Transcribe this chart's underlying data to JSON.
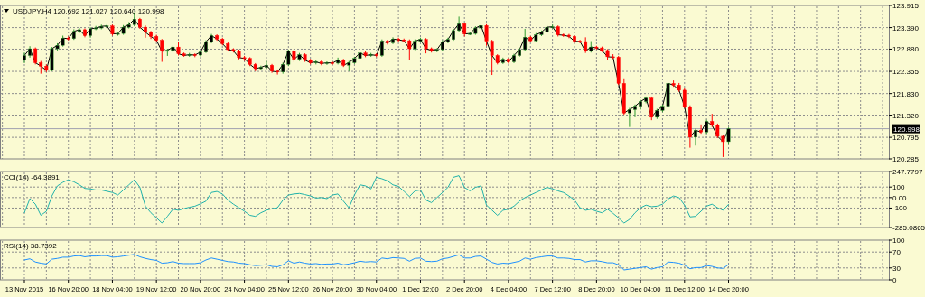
{
  "chart_data": [
    {
      "type": "candlestick",
      "title": "USDJPY,H4  120.692 121.027 120.640 120.998",
      "grid": true,
      "categories": [
        null,
        null,
        null,
        null,
        null,
        null,
        null,
        null,
        null,
        null,
        null,
        null,
        null,
        null,
        null,
        null,
        null,
        null,
        null,
        null,
        null,
        null,
        null,
        null,
        null,
        null,
        null,
        null,
        null,
        null,
        null,
        null,
        null,
        null,
        null,
        null,
        null,
        null,
        null,
        null,
        null,
        null,
        null,
        null,
        null,
        null,
        null,
        null,
        null,
        null,
        null,
        null,
        null,
        null,
        null,
        null,
        null,
        null,
        null,
        null,
        null,
        null,
        null,
        null,
        null,
        null,
        null,
        null,
        null,
        null,
        null,
        null,
        null,
        null,
        null,
        null,
        null,
        null,
        null,
        null,
        null,
        null,
        null,
        null,
        null,
        null,
        null,
        null,
        null,
        null,
        null,
        null,
        null,
        null,
        null,
        null,
        null,
        null,
        null,
        null,
        null,
        null,
        null,
        null,
        null,
        null,
        null,
        null,
        null,
        null,
        null,
        null,
        null,
        null,
        null,
        null,
        null,
        null,
        null,
        null,
        null,
        null,
        null,
        null,
        null,
        null,
        null,
        null,
        null
      ],
      "ylim": [
        120.285,
        123.915
      ],
      "yticks": [
        120.285,
        120.795,
        {
          "value": 121.32,
          "label": "121.320"
        },
        {
          "value": 121.83,
          "label": "121.830"
        },
        122.355,
        {
          "value": 122.88,
          "label": "122.880"
        },
        {
          "value": 123.39,
          "label": "123.390"
        },
        123.915
      ],
      "ref_lines": [
        {
          "axis": "y",
          "value": 120.998,
          "label": "120.998",
          "color": "#a0a0b0"
        }
      ],
      "ohlc": [
        [
          122.62,
          122.8,
          122.55,
          122.73
        ],
        [
          122.73,
          122.95,
          122.68,
          122.89
        ],
        [
          122.89,
          122.92,
          122.52,
          122.56
        ],
        [
          122.56,
          122.6,
          122.3,
          122.48
        ],
        [
          122.48,
          122.52,
          122.34,
          122.38
        ],
        [
          122.38,
          122.93,
          122.36,
          122.89
        ],
        [
          122.89,
          123.02,
          122.85,
          122.97
        ],
        [
          122.97,
          123.2,
          122.94,
          123.14
        ],
        [
          123.14,
          123.18,
          123.09,
          123.13
        ],
        [
          123.13,
          123.35,
          123.1,
          123.3
        ],
        [
          123.3,
          123.38,
          123.26,
          123.34
        ],
        [
          123.34,
          123.37,
          123.16,
          123.2
        ],
        [
          123.2,
          123.4,
          123.15,
          123.36
        ],
        [
          123.36,
          123.43,
          123.33,
          123.38
        ],
        [
          123.38,
          123.46,
          123.35,
          123.42
        ],
        [
          123.42,
          123.47,
          123.39,
          123.43
        ],
        [
          123.43,
          123.46,
          123.2,
          123.24
        ],
        [
          123.24,
          123.29,
          123.2,
          123.25
        ],
        [
          123.25,
          123.45,
          123.22,
          123.4
        ],
        [
          123.4,
          123.52,
          123.37,
          123.46
        ],
        [
          123.46,
          123.75,
          123.42,
          123.59
        ],
        [
          123.59,
          123.62,
          123.36,
          123.4
        ],
        [
          123.4,
          123.44,
          123.15,
          123.28
        ],
        [
          123.28,
          123.31,
          123.12,
          123.18
        ],
        [
          123.18,
          123.22,
          123.05,
          123.09
        ],
        [
          123.09,
          123.12,
          122.58,
          122.83
        ],
        [
          122.83,
          122.89,
          122.72,
          122.85
        ],
        [
          122.85,
          122.97,
          122.81,
          122.93
        ],
        [
          122.93,
          123.05,
          122.73,
          122.77
        ],
        [
          122.77,
          122.8,
          122.7,
          122.73
        ],
        [
          122.73,
          122.79,
          122.7,
          122.75
        ],
        [
          122.75,
          122.78,
          122.69,
          122.74
        ],
        [
          122.74,
          122.85,
          122.71,
          122.81
        ],
        [
          122.81,
          123.09,
          122.79,
          123.05
        ],
        [
          123.05,
          123.24,
          123.02,
          123.2
        ],
        [
          123.2,
          123.23,
          123.08,
          123.12
        ],
        [
          123.12,
          123.15,
          122.97,
          123.01
        ],
        [
          123.01,
          123.04,
          122.83,
          122.87
        ],
        [
          122.87,
          122.9,
          122.8,
          122.84
        ],
        [
          122.84,
          122.87,
          122.64,
          122.68
        ],
        [
          122.68,
          122.72,
          122.6,
          122.66
        ],
        [
          122.66,
          122.69,
          122.48,
          122.52
        ],
        [
          122.52,
          122.55,
          122.36,
          122.42
        ],
        [
          122.42,
          122.49,
          122.38,
          122.45
        ],
        [
          122.45,
          122.6,
          122.42,
          122.5
        ],
        [
          122.5,
          122.53,
          122.32,
          122.36
        ],
        [
          122.36,
          122.4,
          122.28,
          122.34
        ],
        [
          122.34,
          122.56,
          122.3,
          122.52
        ],
        [
          122.52,
          122.87,
          122.48,
          122.83
        ],
        [
          122.83,
          122.88,
          122.58,
          122.64
        ],
        [
          122.64,
          122.79,
          122.6,
          122.75
        ],
        [
          122.75,
          122.78,
          122.58,
          122.62
        ],
        [
          122.62,
          122.65,
          122.52,
          122.56
        ],
        [
          122.56,
          122.62,
          122.52,
          122.58
        ],
        [
          122.58,
          122.61,
          122.5,
          122.54
        ],
        [
          122.54,
          122.59,
          122.51,
          122.56
        ],
        [
          122.56,
          122.59,
          122.51,
          122.55
        ],
        [
          122.55,
          122.68,
          122.52,
          122.62
        ],
        [
          122.62,
          122.65,
          122.46,
          122.5
        ],
        [
          122.5,
          122.6,
          122.36,
          122.56
        ],
        [
          122.56,
          122.7,
          122.53,
          122.66
        ],
        [
          122.66,
          122.85,
          122.63,
          122.79
        ],
        [
          122.79,
          122.83,
          122.69,
          122.73
        ],
        [
          122.73,
          122.79,
          122.7,
          122.75
        ],
        [
          122.75,
          122.78,
          122.69,
          122.73
        ],
        [
          122.73,
          123.11,
          122.7,
          123.07
        ],
        [
          123.07,
          123.1,
          122.99,
          123.03
        ],
        [
          123.03,
          123.16,
          123.0,
          123.12
        ],
        [
          123.12,
          123.15,
          123.06,
          123.1
        ],
        [
          123.1,
          123.13,
          123.04,
          123.08
        ],
        [
          123.08,
          123.11,
          122.62,
          122.89
        ],
        [
          122.89,
          123.11,
          122.86,
          123.07
        ],
        [
          123.07,
          123.15,
          123.04,
          123.11
        ],
        [
          123.11,
          123.14,
          122.78,
          122.89
        ],
        [
          122.89,
          122.92,
          122.8,
          122.85
        ],
        [
          122.85,
          122.9,
          122.81,
          122.87
        ],
        [
          122.87,
          123.09,
          122.84,
          123.05
        ],
        [
          123.05,
          123.15,
          123.02,
          123.11
        ],
        [
          123.11,
          123.36,
          123.08,
          123.32
        ],
        [
          123.32,
          123.65,
          123.29,
          123.48
        ],
        [
          123.48,
          123.51,
          123.18,
          123.24
        ],
        [
          123.24,
          123.29,
          123.21,
          123.25
        ],
        [
          123.25,
          123.42,
          123.22,
          123.38
        ],
        [
          123.38,
          123.52,
          123.35,
          123.44
        ],
        [
          123.44,
          123.47,
          122.96,
          123.07
        ],
        [
          123.07,
          123.1,
          122.27,
          122.73
        ],
        [
          122.73,
          122.76,
          122.52,
          122.56
        ],
        [
          122.56,
          122.68,
          122.53,
          122.64
        ],
        [
          122.64,
          122.67,
          122.54,
          122.58
        ],
        [
          122.58,
          122.77,
          122.55,
          122.73
        ],
        [
          122.73,
          122.91,
          122.7,
          122.87
        ],
        [
          122.87,
          123.36,
          122.84,
          123.16
        ],
        [
          123.16,
          123.19,
          123.04,
          123.08
        ],
        [
          123.08,
          123.26,
          123.05,
          123.22
        ],
        [
          123.22,
          123.32,
          123.19,
          123.28
        ],
        [
          123.28,
          123.45,
          123.25,
          123.4
        ],
        [
          123.4,
          123.46,
          123.37,
          123.41
        ],
        [
          123.41,
          123.44,
          123.18,
          123.22
        ],
        [
          123.22,
          123.25,
          123.17,
          123.21
        ],
        [
          123.21,
          123.24,
          123.14,
          123.18
        ],
        [
          123.18,
          123.21,
          123.03,
          123.07
        ],
        [
          123.07,
          123.1,
          123.02,
          123.06
        ],
        [
          123.06,
          123.16,
          122.79,
          122.83
        ],
        [
          122.83,
          123.07,
          122.8,
          122.93
        ],
        [
          122.93,
          122.96,
          122.87,
          122.91
        ],
        [
          122.91,
          122.94,
          122.81,
          122.85
        ],
        [
          122.85,
          122.88,
          122.63,
          122.7
        ],
        [
          122.7,
          122.76,
          122.65,
          122.69
        ],
        [
          122.69,
          122.72,
          122.03,
          122.07
        ],
        [
          122.07,
          122.19,
          121.33,
          121.37
        ],
        [
          121.37,
          121.49,
          121.04,
          121.45
        ],
        [
          121.45,
          121.57,
          121.27,
          121.53
        ],
        [
          121.53,
          121.68,
          121.45,
          121.64
        ],
        [
          121.64,
          121.76,
          121.6,
          121.72
        ],
        [
          121.72,
          121.76,
          121.2,
          121.27
        ],
        [
          121.27,
          121.47,
          121.23,
          121.43
        ],
        [
          121.43,
          121.57,
          121.39,
          121.53
        ],
        [
          121.53,
          122.11,
          121.49,
          122.07
        ],
        [
          122.07,
          122.14,
          121.99,
          122.03
        ],
        [
          122.03,
          122.08,
          121.87,
          121.91
        ],
        [
          121.91,
          121.95,
          121.48,
          121.52
        ],
        [
          121.52,
          121.55,
          120.55,
          120.8
        ],
        [
          120.8,
          121.0,
          120.6,
          120.96
        ],
        [
          120.96,
          121.1,
          120.88,
          120.92
        ],
        [
          120.92,
          121.21,
          120.88,
          121.17
        ],
        [
          121.17,
          121.35,
          121.04,
          121.08
        ],
        [
          121.08,
          121.12,
          120.78,
          120.82
        ],
        [
          120.82,
          120.86,
          120.33,
          120.692
        ],
        [
          120.692,
          121.027,
          120.64,
          120.998
        ]
      ],
      "series": [
        {
          "type": "line",
          "color": "#000000",
          "values": [
            122.73,
            122.89,
            122.56,
            122.48,
            122.38,
            122.89,
            122.97,
            123.14,
            123.13,
            123.3,
            123.34,
            123.2,
            123.36,
            123.38,
            123.42,
            123.43,
            123.24,
            123.25,
            123.4,
            123.46,
            123.59,
            123.4,
            123.28,
            123.18,
            123.09,
            122.83,
            122.85,
            122.93,
            122.77,
            122.73,
            122.75,
            122.74,
            122.81,
            123.05,
            123.2,
            123.12,
            123.01,
            122.87,
            122.84,
            122.68,
            122.66,
            122.52,
            122.42,
            122.45,
            122.5,
            122.36,
            122.34,
            122.52,
            122.83,
            122.64,
            122.75,
            122.62,
            122.56,
            122.58,
            122.54,
            122.56,
            122.55,
            122.62,
            122.5,
            122.56,
            122.66,
            122.79,
            122.73,
            122.75,
            122.73,
            123.07,
            123.03,
            123.12,
            123.1,
            123.08,
            122.89,
            123.07,
            123.11,
            122.89,
            122.85,
            122.87,
            123.05,
            123.11,
            123.32,
            123.48,
            123.24,
            123.25,
            123.38,
            123.44,
            123.07,
            122.73,
            122.56,
            122.64,
            122.58,
            122.73,
            122.87,
            123.16,
            123.08,
            123.22,
            123.28,
            123.4,
            123.41,
            123.22,
            123.21,
            123.18,
            123.07,
            123.06,
            122.83,
            122.93,
            122.91,
            122.85,
            122.7,
            122.69,
            122.07,
            121.37,
            121.45,
            121.53,
            121.64,
            121.72,
            121.27,
            121.43,
            121.53,
            122.07,
            122.03,
            121.91,
            121.52,
            120.8,
            120.96,
            120.92,
            121.17,
            121.08,
            120.82,
            120.692,
            120.998
          ]
        }
      ]
    },
    {
      "type": "line",
      "title": "CCI(14) -64.3891",
      "grid": true,
      "categories": [
        null,
        null,
        null,
        null,
        null,
        null,
        null,
        null,
        null,
        null,
        null,
        null,
        null,
        null,
        null,
        null,
        null,
        null,
        null,
        null,
        null,
        null,
        null,
        null,
        null,
        null,
        null,
        null,
        null,
        null,
        null,
        null,
        null,
        null,
        null,
        null,
        null,
        null,
        null,
        null,
        null,
        null,
        null,
        null,
        null,
        null,
        null,
        null,
        null,
        null,
        null,
        null,
        null,
        null,
        null,
        null,
        null,
        null,
        null,
        null,
        null,
        null,
        null,
        null,
        null,
        null,
        null,
        null,
        null,
        null,
        null,
        null,
        null,
        null,
        null,
        null,
        null,
        null,
        null,
        null,
        null,
        null,
        null,
        null,
        null,
        null,
        null,
        null,
        null,
        null,
        null,
        null,
        null,
        null,
        null,
        null,
        null,
        null,
        null,
        null,
        null,
        null,
        null,
        null,
        null,
        null,
        null,
        null,
        null,
        null,
        null,
        null,
        null,
        null,
        null,
        null,
        null,
        null,
        null,
        null,
        null,
        null,
        null,
        null,
        null,
        null,
        null,
        null,
        null
      ],
      "ylim": [
        -285.0865,
        247.7797
      ],
      "yticks": [
        -285.0865,
        -100,
        {
          "value": 0,
          "label": "0.00"
        },
        100,
        247.7797
      ],
      "series": [
        {
          "color": "#20b2aa",
          "values": [
            -145,
            -10,
            -63,
            -169,
            -130,
            15,
            111,
            145,
            169,
            150,
            121,
            87,
            82,
            72,
            72,
            60,
            48,
            24,
            72,
            121,
            169,
            97,
            -82,
            -145,
            -193,
            -242,
            -179,
            -111,
            -121,
            -106,
            -92,
            -82,
            -60,
            -34,
            48,
            58,
            34,
            -24,
            -63,
            -97,
            -130,
            -169,
            -179,
            -145,
            -121,
            -106,
            -97,
            -24,
            24,
            34,
            39,
            28,
            15,
            -5,
            0,
            -10,
            24,
            34,
            -34,
            -97,
            24,
            121,
            111,
            82,
            193,
            179,
            159,
            121,
            106,
            60,
            10,
            63,
            72,
            -24,
            -48,
            0,
            48,
            97,
            193,
            208,
            97,
            63,
            97,
            111,
            -72,
            -120,
            -169,
            -121,
            -111,
            -82,
            -34,
            0,
            24,
            48,
            72,
            97,
            82,
            63,
            48,
            15,
            -24,
            -97,
            -121,
            -111,
            -130,
            -145,
            -111,
            -150,
            -193,
            -242,
            -208,
            -145,
            -97,
            -72,
            -87,
            -82,
            -63,
            -14,
            15,
            0,
            -72,
            -184,
            -179,
            -130,
            -82,
            -63,
            -97,
            -121,
            -64.3891
          ]
        }
      ]
    },
    {
      "type": "line",
      "title": "RSI(14) 38.7392",
      "grid": true,
      "categories": [
        "13 Nov 2015",
        null,
        null,
        null,
        null,
        null,
        null,
        null,
        "16 Nov 20:00",
        null,
        null,
        null,
        null,
        null,
        null,
        null,
        "18 Nov 04:00",
        null,
        null,
        null,
        null,
        null,
        null,
        null,
        "19 Nov 12:00",
        null,
        null,
        null,
        null,
        null,
        null,
        null,
        "20 Nov 20:00",
        null,
        null,
        null,
        null,
        null,
        null,
        null,
        "24 Nov 04:00",
        null,
        null,
        null,
        null,
        null,
        null,
        null,
        "25 Nov 12:00",
        null,
        null,
        null,
        null,
        null,
        null,
        null,
        "26 Nov 20:00",
        null,
        null,
        null,
        null,
        null,
        null,
        null,
        "30 Nov 04:00",
        null,
        null,
        null,
        null,
        null,
        null,
        null,
        "1 Dec 12:00",
        null,
        null,
        null,
        null,
        null,
        null,
        null,
        "2 Dec 20:00",
        null,
        null,
        null,
        null,
        null,
        null,
        null,
        "4 Dec 04:00",
        null,
        null,
        null,
        null,
        null,
        null,
        null,
        "7 Dec 12:00",
        null,
        null,
        null,
        null,
        null,
        null,
        null,
        "8 Dec 20:00",
        null,
        null,
        null,
        null,
        null,
        null,
        null,
        "10 Dec 04:00",
        null,
        null,
        null,
        null,
        null,
        null,
        null,
        "11 Dec 12:00",
        null,
        null,
        null,
        null,
        null,
        null,
        null,
        "14 Dec 20:00"
      ],
      "ylim": [
        0,
        100
      ],
      "yticks": [
        0,
        30,
        70,
        100
      ],
      "series": [
        {
          "color": "#1e90ff",
          "values": [
            50,
            53,
            45,
            42,
            40,
            52,
            54,
            57,
            57,
            60,
            61,
            58,
            60,
            60,
            61,
            61,
            57,
            58,
            60,
            62,
            64,
            58,
            54,
            51,
            49,
            42,
            43,
            46,
            42,
            41,
            41,
            41,
            43,
            50,
            55,
            52,
            49,
            46,
            45,
            42,
            41,
            38,
            36,
            37,
            38,
            34,
            33,
            38,
            48,
            42,
            45,
            42,
            40,
            41,
            39,
            40,
            40,
            42,
            38,
            40,
            43,
            47,
            45,
            46,
            45,
            55,
            53,
            56,
            55,
            54,
            47,
            54,
            55,
            47,
            46,
            47,
            53,
            55,
            59,
            63,
            55,
            55,
            59,
            60,
            52,
            44,
            40,
            42,
            41,
            44,
            47,
            55,
            52,
            56,
            58,
            60,
            60,
            55,
            55,
            54,
            51,
            51,
            45,
            48,
            48,
            46,
            43,
            43,
            38,
            25,
            27,
            29,
            31,
            33,
            27,
            31,
            33,
            45,
            44,
            42,
            37,
            28,
            31,
            31,
            36,
            34,
            30,
            29,
            38.7392
          ]
        }
      ]
    }
  ]
}
